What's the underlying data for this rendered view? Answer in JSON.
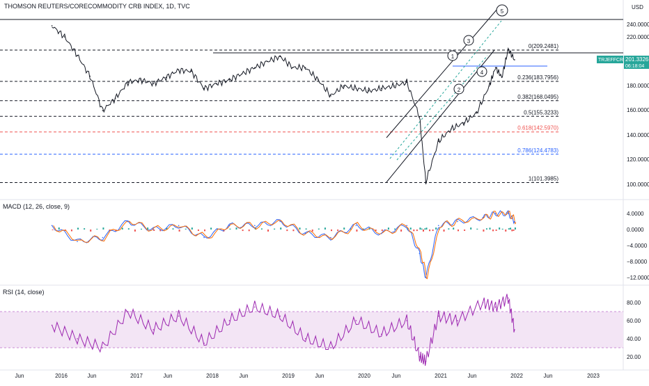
{
  "header": {
    "title": "THOMSON REUTERS/CORECOMMODITY CRB INDEX, 1D, TVC",
    "currency": "USD"
  },
  "price_badge": {
    "symbol": "TRJEFFCRB",
    "price": "201.3326",
    "countdown": "06:18:04"
  },
  "price_axis": [
    "240.0000",
    "220.0000",
    "180.0000",
    "160.0000",
    "140.0000",
    "120.0000",
    "100.0000"
  ],
  "macd_panel": {
    "label": "MACD (12, 26, close, 9)",
    "axis": [
      "4.0000",
      "0.0000",
      "−4.0000",
      "−8.0000",
      "−12.0000"
    ]
  },
  "rsi_panel": {
    "label": "RSI (14, close)",
    "axis": [
      "80.00",
      "60.00",
      "40.00",
      "20.00"
    ]
  },
  "time_axis": [
    "Jun",
    "2016",
    "Jun",
    "2017",
    "Jun",
    "2018",
    "Jun",
    "2019",
    "Jun",
    "2020",
    "Jun",
    "2021",
    "Jun",
    "2022",
    "Jun",
    "2023"
  ],
  "fib_levels": [
    {
      "label": "0(209.2481)",
      "value": 209.2481,
      "color": "#131722"
    },
    {
      "label": "0.236(183.7956)",
      "value": 183.7956,
      "color": "#131722"
    },
    {
      "label": "0.382(168.0495)",
      "value": 168.0495,
      "color": "#131722"
    },
    {
      "label": "0.5(155.3233)",
      "value": 155.3233,
      "color": "#131722"
    },
    {
      "label": "0.618(142.5970)",
      "value": 142.597,
      "color": "#ef5350"
    },
    {
      "label": "0.786(124.4783)",
      "value": 124.4783,
      "color": "#2962ff"
    },
    {
      "label": "1(101.3985)",
      "value": 101.3985,
      "color": "#131722"
    }
  ],
  "wave_labels": [
    "1",
    "2",
    "3",
    "4",
    "5"
  ],
  "colors": {
    "price": "#131722",
    "bull_candle": "#26a69a",
    "bear_candle": "#ef5350",
    "macd_line": "#2962ff",
    "signal_line": "#ff6d00",
    "rsi_line": "#9c27b0",
    "rsi_band": "#f3e5f5",
    "badge": "#26a69a"
  },
  "chart_data": [
    {
      "type": "line",
      "title": "THOMSON REUTERS/CORECOMMODITY CRB INDEX, 1D, TVC",
      "series": [
        {
          "name": "TRJEFFCRB",
          "x": [
            "2015-05",
            "2015-07",
            "2015-09",
            "2015-11",
            "2016-01",
            "2016-03",
            "2016-05",
            "2016-07",
            "2016-09",
            "2016-11",
            "2017-01",
            "2017-03",
            "2017-05",
            "2017-07",
            "2017-09",
            "2017-11",
            "2018-01",
            "2018-03",
            "2018-05",
            "2018-07",
            "2018-09",
            "2018-11",
            "2019-01",
            "2019-03",
            "2019-05",
            "2019-07",
            "2019-09",
            "2019-11",
            "2020-01",
            "2020-03",
            "2020-04",
            "2020-06",
            "2020-08",
            "2020-10",
            "2020-12",
            "2021-02",
            "2021-03",
            "2021-04",
            "2021-05",
            "2021-06"
          ],
          "values": [
            229,
            220,
            205,
            188,
            160,
            170,
            183,
            185,
            182,
            187,
            193,
            192,
            178,
            182,
            185,
            190,
            195,
            200,
            204,
            195,
            195,
            185,
            172,
            180,
            178,
            176,
            178,
            180,
            183,
            155,
            102,
            135,
            145,
            150,
            158,
            180,
            195,
            187,
            210,
            201.3326
          ]
        }
      ],
      "ylim": [
        95,
        245
      ],
      "xlim": [
        "2015-04",
        "2023-07"
      ]
    },
    {
      "type": "line",
      "title": "MACD (12, 26, close, 9)",
      "series": [
        {
          "name": "MACD",
          "x": [
            "2015-05",
            "2015-09",
            "2016-01",
            "2016-05",
            "2016-09",
            "2017-01",
            "2017-05",
            "2017-09",
            "2018-01",
            "2018-05",
            "2018-09",
            "2019-01",
            "2019-05",
            "2019-09",
            "2020-01",
            "2020-03",
            "2020-04",
            "2020-06",
            "2020-09",
            "2021-01",
            "2021-03",
            "2021-05",
            "2021-06"
          ],
          "values": [
            1,
            -3,
            -2,
            2,
            0,
            1,
            -2,
            1,
            1,
            2,
            -1,
            -2,
            1,
            -1,
            1,
            -6,
            -12,
            1,
            2,
            3,
            4,
            4,
            2
          ]
        }
      ],
      "ylim": [
        -13,
        6
      ]
    },
    {
      "type": "line",
      "title": "RSI (14, close)",
      "series": [
        {
          "name": "RSI",
          "x": [
            "2015-05",
            "2015-09",
            "2016-01",
            "2016-05",
            "2016-09",
            "2017-01",
            "2017-05",
            "2017-09",
            "2018-01",
            "2018-05",
            "2018-09",
            "2019-01",
            "2019-05",
            "2019-09",
            "2020-01",
            "2020-03",
            "2020-04",
            "2020-06",
            "2020-09",
            "2021-01",
            "2021-03",
            "2021-05",
            "2021-06"
          ],
          "values": [
            55,
            40,
            30,
            70,
            50,
            65,
            35,
            60,
            75,
            65,
            40,
            30,
            60,
            45,
            60,
            20,
            15,
            65,
            60,
            80,
            75,
            85,
            50
          ]
        }
      ],
      "ylim": [
        10,
        95
      ]
    }
  ]
}
